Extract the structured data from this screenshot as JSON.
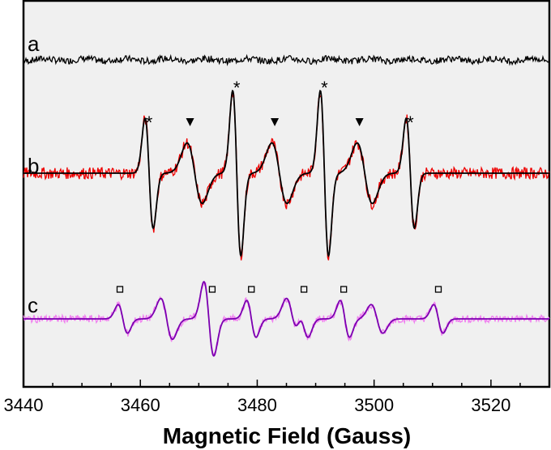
{
  "chart_data": {
    "type": "line",
    "title": "",
    "xlabel": "Magnetic Field (Gauss)",
    "ylabel": "",
    "xlim": [
      3440,
      3530
    ],
    "xticks": [
      3440,
      3460,
      3480,
      3500,
      3520
    ],
    "grid": false,
    "legend": "none",
    "background": "#f0f0f0",
    "series": [
      {
        "label": "a",
        "color": "#000000",
        "baseline": 0.9,
        "noise_amp": 0.12,
        "lines": []
      },
      {
        "label": "b",
        "color": "#ee0000",
        "fit_color": "#000000",
        "baseline": 0.0,
        "noise_amp": 0.08,
        "lines": [
          {
            "center": 3461.5,
            "amp": 1.0,
            "width": 0.7
          },
          {
            "center": 3469.3,
            "amp": 0.55,
            "width": 1.3
          },
          {
            "center": 3476.5,
            "amp": 1.5,
            "width": 0.7
          },
          {
            "center": 3483.8,
            "amp": 0.55,
            "width": 1.3
          },
          {
            "center": 3491.5,
            "amp": 1.5,
            "width": 0.7
          },
          {
            "center": 3498.4,
            "amp": 0.55,
            "width": 1.3
          },
          {
            "center": 3506.2,
            "amp": 1.0,
            "width": 0.7
          }
        ]
      },
      {
        "label": "c",
        "color": "#f080f0",
        "fit_color": "#7b00b0",
        "baseline": -1.3,
        "noise_amp": 0.07,
        "lines": [
          {
            "center": 3357.0,
            "amp": 0.0,
            "width": 1.0
          },
          {
            "center": 3457.0,
            "amp": 0.35,
            "width": 0.8
          },
          {
            "center": 3464.5,
            "amp": 0.5,
            "width": 1.0
          },
          {
            "center": 3471.5,
            "amp": 0.55,
            "width": 0.8
          },
          {
            "center": 3472.0,
            "amp": 0.45,
            "width": 0.8
          },
          {
            "center": 3479.0,
            "amp": 0.45,
            "width": 0.8
          },
          {
            "center": 3486.0,
            "amp": 0.5,
            "width": 1.0
          },
          {
            "center": 3488.0,
            "amp": 0.4,
            "width": 0.8
          },
          {
            "center": 3495.0,
            "amp": 0.45,
            "width": 0.8
          },
          {
            "center": 3500.5,
            "amp": 0.35,
            "width": 1.0
          },
          {
            "center": 3511.0,
            "amp": 0.35,
            "width": 0.8
          }
        ]
      }
    ],
    "annotations": [
      {
        "trace": "b",
        "symbol": "*",
        "x": [
          3461.5,
          3476.5,
          3491.5,
          3506.2
        ]
      },
      {
        "trace": "b",
        "symbol": "triangle-down",
        "x": [
          3468.5,
          3483.0,
          3497.5
        ]
      },
      {
        "trace": "c",
        "symbol": "square",
        "x": [
          3456.5,
          3472.3,
          3479.0,
          3488.0,
          3494.8,
          3511.0
        ]
      }
    ]
  }
}
